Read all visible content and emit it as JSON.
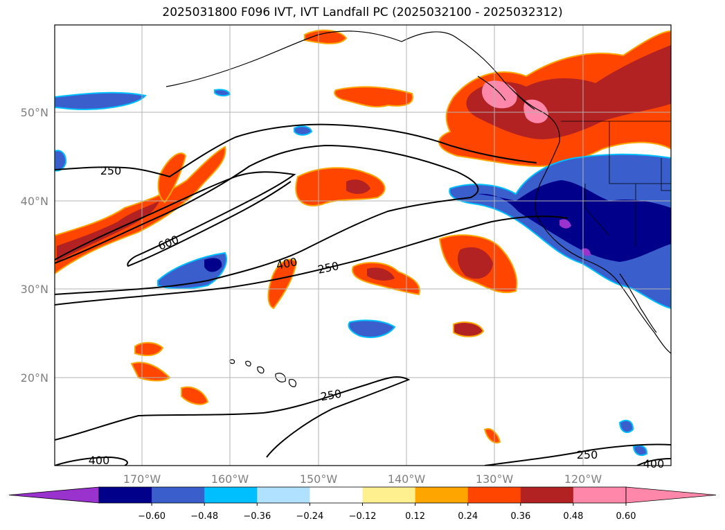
{
  "title": "2025031800 F096 IVT, IVT Landfall PC (2025032100 - 2025032312)",
  "lat_labels": [
    "50°N",
    "40°N",
    "30°N",
    "20°N"
  ],
  "lon_labels": [
    "170°W",
    "160°W",
    "150°W",
    "140°W",
    "130°W",
    "120°W"
  ],
  "contour_labels": [
    "250",
    "600",
    "400",
    "250",
    "250",
    "400",
    "250",
    "400"
  ],
  "colorbar": {
    "ticks": [
      "−0.60",
      "−0.48",
      "−0.36",
      "−0.24",
      "−0.12",
      "0.12",
      "0.24",
      "0.36",
      "0.48",
      "0.60"
    ],
    "colors": [
      "#9a32cd",
      "#00008b",
      "#3a5fcd",
      "#00bfff",
      "#b0e2ff",
      "#ffffff",
      "#fff08f",
      "#ffa500",
      "#ff4500",
      "#b22222",
      "#ff88aa",
      "#ff88aa"
    ]
  }
}
